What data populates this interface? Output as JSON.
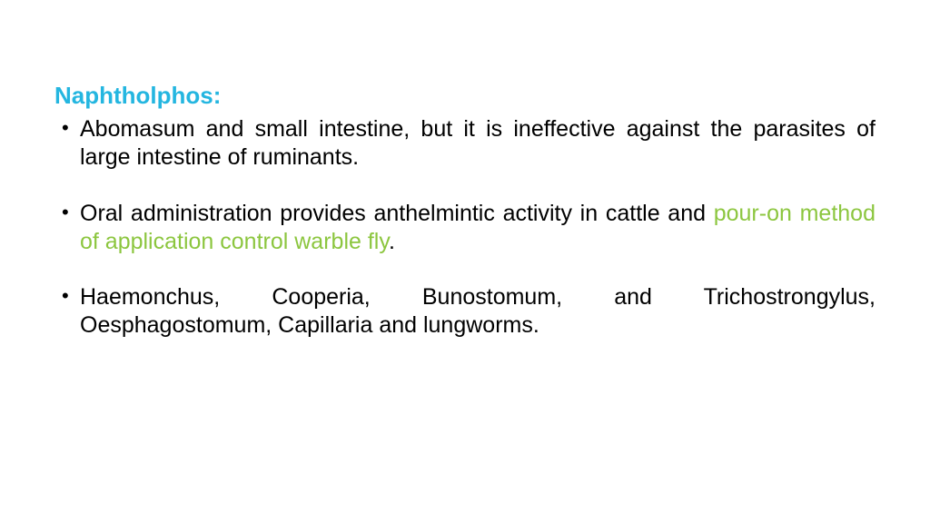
{
  "title": {
    "text": "Naphtholphos:",
    "color": "#24b6e0"
  },
  "highlight_color": "#8cc63f",
  "text_color": "#000000",
  "font_family": "Comic Sans MS",
  "font_size_title": 26,
  "font_size_body": 25,
  "background_color": "#ffffff",
  "bullets": [
    {
      "segments": [
        {
          "text": "Abomasum and small intestine, but it is ineffective against the parasites of large intestine of ruminants.",
          "highlight": false
        }
      ]
    },
    {
      "segments": [
        {
          "text": "Oral administration provides anthelmintic activity in cattle and ",
          "highlight": false
        },
        {
          "text": "pour-on method of application control warble fly",
          "highlight": true
        },
        {
          "text": ".",
          "highlight": false
        }
      ]
    },
    {
      "segments": [
        {
          "text": "Haemonchus, Cooperia, Bunostomum, and Trichostrongylus, Oesphagostomum, Capillaria and lungworms.",
          "highlight": false
        }
      ]
    }
  ]
}
